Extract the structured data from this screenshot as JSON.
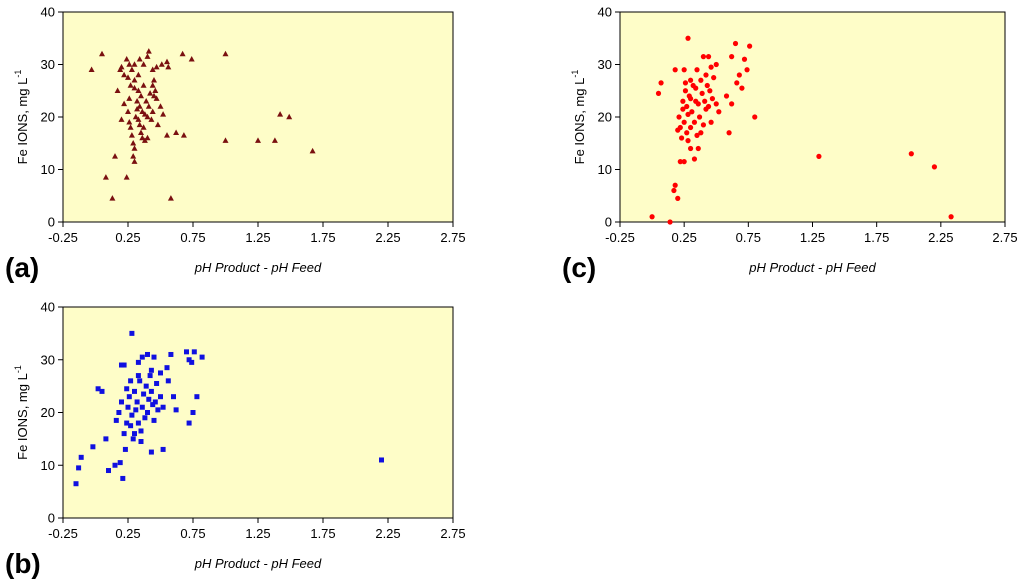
{
  "colors": {
    "plot_bg": "#fefdc8",
    "axis": "#000000"
  },
  "chart_data": [
    {
      "id": "a",
      "type": "scatter",
      "panel_label": "(a)",
      "marker": "triangle",
      "color": "#7a1010",
      "xlabel": "pH Product - pH Feed",
      "ylabel": "Fe IONS, mg L",
      "ylabel_sup": "-1",
      "xlim": [
        -0.25,
        2.75
      ],
      "ylim": [
        0,
        40
      ],
      "xticks": [
        -0.25,
        0.25,
        0.75,
        1.25,
        1.75,
        2.25,
        2.75
      ],
      "xtick_labels": [
        "-0.25",
        "0.25",
        "0.75",
        "1.25",
        "1.75",
        "2.25",
        "2.75"
      ],
      "yticks": [
        0,
        10,
        20,
        30,
        40
      ],
      "ytick_labels": [
        "0",
        "10",
        "20",
        "30",
        "40"
      ],
      "points": [
        [
          -0.03,
          29
        ],
        [
          0.05,
          32
        ],
        [
          0.08,
          8.5
        ],
        [
          0.13,
          4.5
        ],
        [
          0.15,
          12.5
        ],
        [
          0.17,
          25
        ],
        [
          0.2,
          19.5
        ],
        [
          0.22,
          28
        ],
        [
          0.24,
          8.5
        ],
        [
          0.19,
          29
        ],
        [
          0.2,
          29.5
        ],
        [
          0.24,
          31
        ],
        [
          0.26,
          30
        ],
        [
          0.28,
          29
        ],
        [
          0.3,
          30
        ],
        [
          0.25,
          27.5
        ],
        [
          0.27,
          26
        ],
        [
          0.3,
          27
        ],
        [
          0.33,
          28
        ],
        [
          0.34,
          31
        ],
        [
          0.37,
          30
        ],
        [
          0.4,
          31.5
        ],
        [
          0.41,
          32.5
        ],
        [
          0.44,
          29
        ],
        [
          0.47,
          29.5
        ],
        [
          0.51,
          30
        ],
        [
          0.55,
          30.5
        ],
        [
          0.56,
          29.5
        ],
        [
          0.67,
          32
        ],
        [
          0.74,
          31
        ],
        [
          1.0,
          32
        ],
        [
          0.22,
          22.5
        ],
        [
          0.25,
          21
        ],
        [
          0.26,
          19
        ],
        [
          0.27,
          18
        ],
        [
          0.28,
          16.5
        ],
        [
          0.29,
          15
        ],
        [
          0.29,
          12.5
        ],
        [
          0.3,
          11.5
        ],
        [
          0.3,
          14
        ],
        [
          0.31,
          20
        ],
        [
          0.32,
          23
        ],
        [
          0.33,
          25
        ],
        [
          0.33,
          19.5
        ],
        [
          0.34,
          22
        ],
        [
          0.35,
          17
        ],
        [
          0.35,
          24
        ],
        [
          0.36,
          21
        ],
        [
          0.37,
          26
        ],
        [
          0.37,
          18
        ],
        [
          0.38,
          20.5
        ],
        [
          0.39,
          23
        ],
        [
          0.4,
          16
        ],
        [
          0.41,
          22
        ],
        [
          0.42,
          24.5
        ],
        [
          0.43,
          19.5
        ],
        [
          0.44,
          21
        ],
        [
          0.45,
          27
        ],
        [
          0.46,
          25
        ],
        [
          0.47,
          23.5
        ],
        [
          0.48,
          18.5
        ],
        [
          0.5,
          22
        ],
        [
          0.52,
          20.5
        ],
        [
          0.55,
          16.5
        ],
        [
          0.44,
          26
        ],
        [
          0.36,
          16
        ],
        [
          0.38,
          15.5
        ],
        [
          0.34,
          18.5
        ],
        [
          0.32,
          21.5
        ],
        [
          0.3,
          25.5
        ],
        [
          0.26,
          23.5
        ],
        [
          0.4,
          20
        ],
        [
          0.45,
          24
        ],
        [
          0.58,
          4.5
        ],
        [
          0.62,
          17
        ],
        [
          0.68,
          16.5
        ],
        [
          1.0,
          15.5
        ],
        [
          1.25,
          15.5
        ],
        [
          1.38,
          15.5
        ],
        [
          1.42,
          20.5
        ],
        [
          1.49,
          20
        ],
        [
          1.67,
          13.5
        ]
      ]
    },
    {
      "id": "c",
      "type": "scatter",
      "panel_label": "(c)",
      "marker": "circle",
      "color": "#ff0000",
      "xlabel": "pH Product - pH Feed",
      "ylabel": "Fe IONS, mg L",
      "ylabel_sup": "-1",
      "xlim": [
        -0.25,
        2.75
      ],
      "ylim": [
        0,
        40
      ],
      "xticks": [
        -0.25,
        0.25,
        0.75,
        1.25,
        1.75,
        2.25,
        2.75
      ],
      "xtick_labels": [
        "-0.25",
        "0.25",
        "0.75",
        "1.25",
        "1.75",
        "2.25",
        "2.75"
      ],
      "yticks": [
        0,
        10,
        20,
        30,
        40
      ],
      "ytick_labels": [
        "0",
        "10",
        "20",
        "30",
        "40"
      ],
      "points": [
        [
          0.0,
          1
        ],
        [
          0.14,
          0
        ],
        [
          0.2,
          4.5
        ],
        [
          0.17,
          6
        ],
        [
          0.18,
          7
        ],
        [
          0.25,
          11.5
        ],
        [
          0.22,
          11.5
        ],
        [
          0.05,
          24.5
        ],
        [
          0.07,
          26.5
        ],
        [
          0.18,
          29
        ],
        [
          0.25,
          29
        ],
        [
          0.28,
          35
        ],
        [
          0.3,
          27
        ],
        [
          0.35,
          29
        ],
        [
          0.4,
          31.5
        ],
        [
          0.44,
          31.5
        ],
        [
          0.5,
          30
        ],
        [
          0.46,
          29.5
        ],
        [
          0.2,
          17.5
        ],
        [
          0.21,
          20
        ],
        [
          0.22,
          18
        ],
        [
          0.23,
          16
        ],
        [
          0.24,
          21.5
        ],
        [
          0.25,
          19
        ],
        [
          0.26,
          25
        ],
        [
          0.27,
          22
        ],
        [
          0.27,
          17
        ],
        [
          0.28,
          20.5
        ],
        [
          0.29,
          24
        ],
        [
          0.3,
          18
        ],
        [
          0.31,
          21
        ],
        [
          0.32,
          26
        ],
        [
          0.33,
          19
        ],
        [
          0.34,
          23
        ],
        [
          0.35,
          16.5
        ],
        [
          0.36,
          22.5
        ],
        [
          0.37,
          20
        ],
        [
          0.38,
          27
        ],
        [
          0.39,
          24.5
        ],
        [
          0.4,
          18.5
        ],
        [
          0.41,
          23
        ],
        [
          0.42,
          21.5
        ],
        [
          0.43,
          26
        ],
        [
          0.44,
          22
        ],
        [
          0.45,
          25
        ],
        [
          0.46,
          19
        ],
        [
          0.47,
          23.5
        ],
        [
          0.48,
          27.5
        ],
        [
          0.5,
          22.5
        ],
        [
          0.52,
          21
        ],
        [
          0.3,
          14
        ],
        [
          0.28,
          15.5
        ],
        [
          0.33,
          12
        ],
        [
          0.36,
          14
        ],
        [
          0.24,
          23
        ],
        [
          0.26,
          26.5
        ],
        [
          0.3,
          23.5
        ],
        [
          0.34,
          25.5
        ],
        [
          0.38,
          17
        ],
        [
          0.42,
          28
        ],
        [
          0.58,
          24
        ],
        [
          0.6,
          17
        ],
        [
          0.62,
          31.5
        ],
        [
          0.65,
          34
        ],
        [
          0.68,
          28
        ],
        [
          0.7,
          25.5
        ],
        [
          0.72,
          31
        ],
        [
          0.74,
          29
        ],
        [
          0.76,
          33.5
        ],
        [
          0.8,
          20
        ],
        [
          0.66,
          26.5
        ],
        [
          0.62,
          22.5
        ],
        [
          1.3,
          12.5
        ],
        [
          2.02,
          13
        ],
        [
          2.2,
          10.5
        ],
        [
          2.33,
          1
        ]
      ]
    },
    {
      "id": "b",
      "type": "scatter",
      "panel_label": "(b)",
      "marker": "square",
      "color": "#1010e0",
      "xlabel": "pH Product - pH Feed",
      "ylabel": "Fe IONS, mg L",
      "ylabel_sup": "-1",
      "xlim": [
        -0.25,
        2.75
      ],
      "ylim": [
        0,
        40
      ],
      "xticks": [
        -0.25,
        0.25,
        0.75,
        1.25,
        1.75,
        2.25,
        2.75
      ],
      "xtick_labels": [
        "-0.25",
        "0.25",
        "0.75",
        "1.25",
        "1.75",
        "2.25",
        "2.75"
      ],
      "yticks": [
        0,
        10,
        20,
        30,
        40
      ],
      "ytick_labels": [
        "0",
        "10",
        "20",
        "30",
        "40"
      ],
      "points": [
        [
          -0.15,
          6.5
        ],
        [
          -0.13,
          9.5
        ],
        [
          -0.11,
          11.5
        ],
        [
          -0.02,
          13.5
        ],
        [
          0.02,
          24.5
        ],
        [
          0.05,
          24
        ],
        [
          0.08,
          15
        ],
        [
          0.1,
          9
        ],
        [
          0.16,
          18.5
        ],
        [
          0.18,
          20
        ],
        [
          0.2,
          29
        ],
        [
          0.22,
          29
        ],
        [
          0.2,
          22
        ],
        [
          0.15,
          10
        ],
        [
          0.19,
          10.5
        ],
        [
          0.21,
          7.5
        ],
        [
          0.23,
          13
        ],
        [
          0.28,
          35
        ],
        [
          0.33,
          29.5
        ],
        [
          0.36,
          30.5
        ],
        [
          0.4,
          31
        ],
        [
          0.45,
          30.5
        ],
        [
          0.43,
          28
        ],
        [
          0.5,
          27.5
        ],
        [
          0.58,
          31
        ],
        [
          0.22,
          16
        ],
        [
          0.24,
          18
        ],
        [
          0.25,
          21
        ],
        [
          0.26,
          23
        ],
        [
          0.27,
          17.5
        ],
        [
          0.28,
          19.5
        ],
        [
          0.29,
          15
        ],
        [
          0.3,
          24
        ],
        [
          0.31,
          20.5
        ],
        [
          0.32,
          22
        ],
        [
          0.33,
          18
        ],
        [
          0.34,
          26
        ],
        [
          0.35,
          16.5
        ],
        [
          0.36,
          21
        ],
        [
          0.37,
          23.5
        ],
        [
          0.38,
          19
        ],
        [
          0.39,
          25
        ],
        [
          0.4,
          20
        ],
        [
          0.41,
          22.5
        ],
        [
          0.42,
          27
        ],
        [
          0.43,
          24
        ],
        [
          0.44,
          21.5
        ],
        [
          0.45,
          18.5
        ],
        [
          0.46,
          22
        ],
        [
          0.47,
          25.5
        ],
        [
          0.48,
          20.5
        ],
        [
          0.5,
          23
        ],
        [
          0.52,
          21
        ],
        [
          0.55,
          28.5
        ],
        [
          0.56,
          26
        ],
        [
          0.43,
          12.5
        ],
        [
          0.52,
          13
        ],
        [
          0.35,
          14.5
        ],
        [
          0.3,
          16
        ],
        [
          0.24,
          24.5
        ],
        [
          0.27,
          26
        ],
        [
          0.33,
          27
        ],
        [
          0.6,
          23
        ],
        [
          0.62,
          20.5
        ],
        [
          0.7,
          31.5
        ],
        [
          0.72,
          30
        ],
        [
          0.74,
          29.5
        ],
        [
          0.76,
          31.5
        ],
        [
          0.82,
          30.5
        ],
        [
          0.72,
          18
        ],
        [
          0.75,
          20
        ],
        [
          0.78,
          23
        ],
        [
          2.2,
          11
        ]
      ]
    }
  ]
}
